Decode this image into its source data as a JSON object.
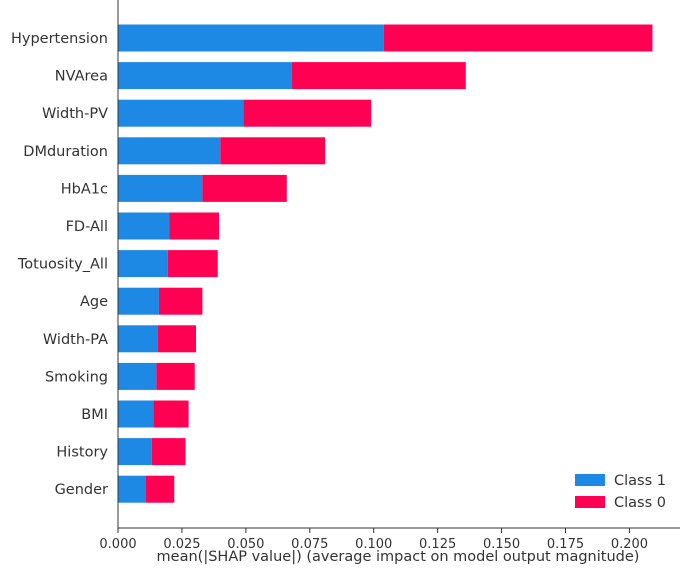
{
  "chart_data": {
    "type": "bar",
    "orientation": "horizontal",
    "stacked": true,
    "categories": [
      "Hypertension",
      "NVArea",
      "Width-PV",
      "DMduration",
      "HbA1c",
      "FD-All",
      "Totuosity_All",
      "Age",
      "Width-PA",
      "Smoking",
      "BMI",
      "History",
      "Gender"
    ],
    "series": [
      {
        "name": "Class 1",
        "color": "#1E88E5",
        "values": [
          0.104,
          0.068,
          0.049,
          0.04,
          0.033,
          0.02,
          0.0195,
          0.016,
          0.0155,
          0.015,
          0.0138,
          0.0132,
          0.0108
        ]
      },
      {
        "name": "Class 0",
        "color": "#FF0052",
        "values": [
          0.105,
          0.068,
          0.05,
          0.041,
          0.033,
          0.0195,
          0.0195,
          0.017,
          0.015,
          0.015,
          0.0138,
          0.0132,
          0.0112
        ]
      }
    ],
    "xlabel": "mean(|SHAP value|) (average impact on model output magnitude)",
    "xlim": [
      0,
      0.22
    ],
    "xticks": [
      "0.000",
      "0.025",
      "0.050",
      "0.075",
      "0.100",
      "0.125",
      "0.150",
      "0.175",
      "0.200"
    ],
    "grid": false,
    "legend_position": "bottom-right"
  }
}
